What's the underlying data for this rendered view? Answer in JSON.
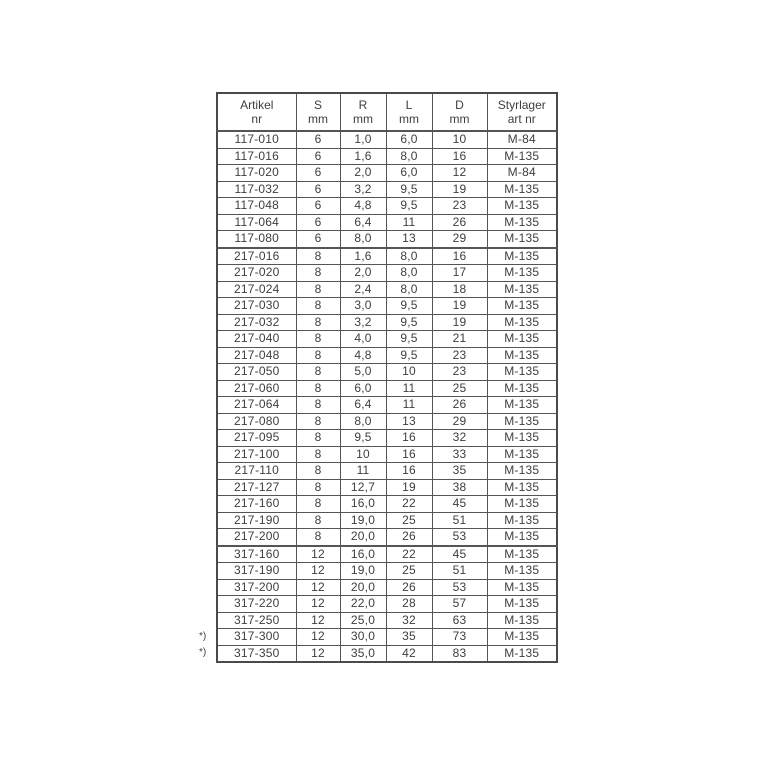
{
  "table": {
    "header": [
      {
        "id": "artikel-nr",
        "line1": "Artikel",
        "line2": "nr"
      },
      {
        "id": "s-mm",
        "line1": "S",
        "line2": "mm"
      },
      {
        "id": "r-mm",
        "line1": "R",
        "line2": "mm"
      },
      {
        "id": "l-mm",
        "line1": "L",
        "line2": "mm"
      },
      {
        "id": "d-mm",
        "line1": "D",
        "line2": "mm"
      },
      {
        "id": "styrlager-art-nr",
        "line1": "Styrlager",
        "line2": "art nr"
      }
    ],
    "rows": [
      [
        "117-010",
        "6",
        "1,0",
        "6,0",
        "10",
        "M-84"
      ],
      [
        "117-016",
        "6",
        "1,6",
        "8,0",
        "16",
        "M-135"
      ],
      [
        "117-020",
        "6",
        "2,0",
        "6,0",
        "12",
        "M-84"
      ],
      [
        "117-032",
        "6",
        "3,2",
        "9,5",
        "19",
        "M-135"
      ],
      [
        "117-048",
        "6",
        "4,8",
        "9,5",
        "23",
        "M-135"
      ],
      [
        "117-064",
        "6",
        "6,4",
        "11",
        "26",
        "M-135"
      ],
      [
        "117-080",
        "6",
        "8,0",
        "13",
        "29",
        "M-135"
      ],
      [
        "217-016",
        "8",
        "1,6",
        "8,0",
        "16",
        "M-135"
      ],
      [
        "217-020",
        "8",
        "2,0",
        "8,0",
        "17",
        "M-135"
      ],
      [
        "217-024",
        "8",
        "2,4",
        "8,0",
        "18",
        "M-135"
      ],
      [
        "217-030",
        "8",
        "3,0",
        "9,5",
        "19",
        "M-135"
      ],
      [
        "217-032",
        "8",
        "3,2",
        "9,5",
        "19",
        "M-135"
      ],
      [
        "217-040",
        "8",
        "4,0",
        "9,5",
        "21",
        "M-135"
      ],
      [
        "217-048",
        "8",
        "4,8",
        "9,5",
        "23",
        "M-135"
      ],
      [
        "217-050",
        "8",
        "5,0",
        "10",
        "23",
        "M-135"
      ],
      [
        "217-060",
        "8",
        "6,0",
        "11",
        "25",
        "M-135"
      ],
      [
        "217-064",
        "8",
        "6,4",
        "11",
        "26",
        "M-135"
      ],
      [
        "217-080",
        "8",
        "8,0",
        "13",
        "29",
        "M-135"
      ],
      [
        "217-095",
        "8",
        "9,5",
        "16",
        "32",
        "M-135"
      ],
      [
        "217-100",
        "8",
        "10",
        "16",
        "33",
        "M-135"
      ],
      [
        "217-110",
        "8",
        "11",
        "16",
        "35",
        "M-135"
      ],
      [
        "217-127",
        "8",
        "12,7",
        "19",
        "38",
        "M-135"
      ],
      [
        "217-160",
        "8",
        "16,0",
        "22",
        "45",
        "M-135"
      ],
      [
        "217-190",
        "8",
        "19,0",
        "25",
        "51",
        "M-135"
      ],
      [
        "217-200",
        "8",
        "20,0",
        "26",
        "53",
        "M-135"
      ],
      [
        "317-160",
        "12",
        "16,0",
        "22",
        "45",
        "M-135"
      ],
      [
        "317-190",
        "12",
        "19,0",
        "25",
        "51",
        "M-135"
      ],
      [
        "317-200",
        "12",
        "20,0",
        "26",
        "53",
        "M-135"
      ],
      [
        "317-220",
        "12",
        "22,0",
        "28",
        "57",
        "M-135"
      ],
      [
        "317-250",
        "12",
        "25,0",
        "32",
        "63",
        "M-135"
      ],
      [
        "317-300",
        "12",
        "30,0",
        "35",
        "73",
        "M-135"
      ],
      [
        "317-350",
        "12",
        "35,0",
        "42",
        "83",
        "M-135"
      ]
    ],
    "group_start_articles": [
      "217-016",
      "317-160"
    ],
    "footnote_marker": {
      "text": "*)",
      "applies_to": [
        "317-300",
        "317-350"
      ]
    }
  },
  "colors": {
    "text": "#3e3e3e",
    "border": "#555555",
    "outer_border": "#4a4a4a",
    "background": "#ffffff"
  }
}
